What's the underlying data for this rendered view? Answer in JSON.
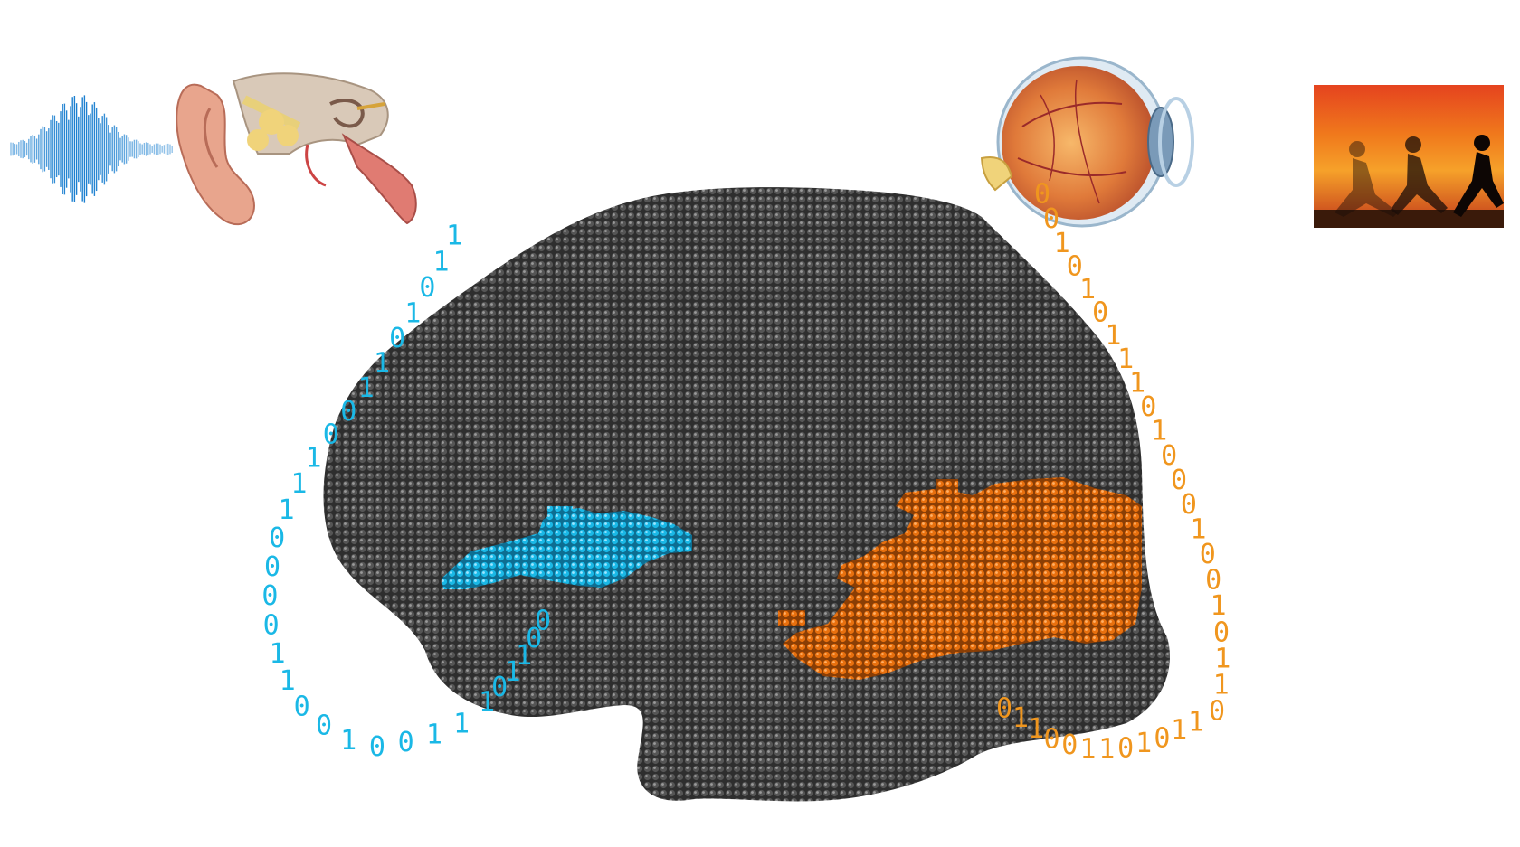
{
  "colors": {
    "background": "#ffffff",
    "brain": "#3a3a3a",
    "brain_highlight": "#6a6a6a",
    "auditory": "#1ab8e6",
    "visual": "#f0961e",
    "visual_region": "#e8700e",
    "wave": "#1a7fd0"
  },
  "icons": {
    "sound": "sound-wave-icon",
    "ear": "ear-anatomy-icon",
    "eye": "eye-anatomy-icon",
    "scene": "running-people-scene-icon",
    "brain": "voxel-brain-icon"
  },
  "auditory_stream": {
    "outer": "1100100110000111001101011",
    "inner": "101100"
  },
  "visual_stream": {
    "outer": "0010101110100010010110",
    "inner": "011001101011"
  }
}
